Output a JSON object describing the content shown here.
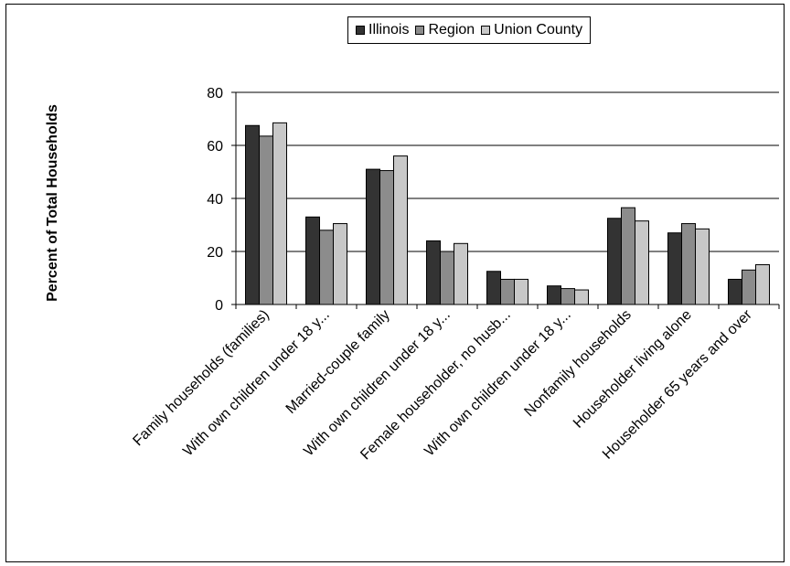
{
  "chart_data": {
    "type": "bar",
    "title": "",
    "xlabel": "",
    "ylabel": "Percent of Total Households",
    "ylim": [
      0,
      80
    ],
    "yticks": [
      0,
      20,
      40,
      60,
      80
    ],
    "grid": "horizontal",
    "legend_position": "top",
    "categories": [
      "Family households (families)",
      "With own children under 18 y...",
      "Married-couple family",
      "With own children under 18 y...",
      "Female householder, no husb...",
      "With own children under 18 y...",
      "Nonfamily households",
      "Householder living alone",
      "Householder 65 years and over"
    ],
    "series": [
      {
        "name": "Illinois",
        "color": "#333333",
        "values": [
          67.5,
          33,
          51,
          24,
          12.5,
          7,
          32.5,
          27,
          9.5
        ]
      },
      {
        "name": "Region",
        "color": "#8c8c8c",
        "values": [
          63.5,
          28,
          50.5,
          20,
          9.5,
          6,
          36.5,
          30.5,
          13
        ]
      },
      {
        "name": "Union County",
        "color": "#c8c8c8",
        "values": [
          68.5,
          30.5,
          56,
          23,
          9.5,
          5.5,
          31.5,
          28.5,
          15
        ]
      }
    ]
  }
}
